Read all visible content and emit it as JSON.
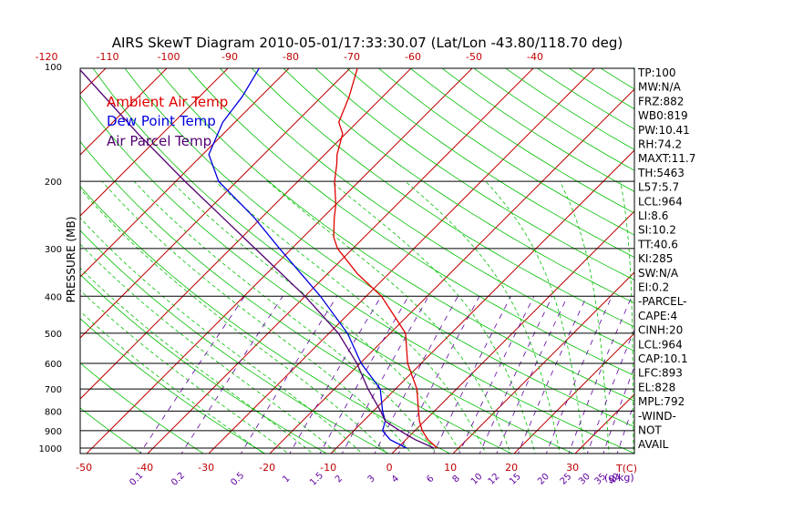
{
  "chart_data": {
    "type": "line",
    "title": "AIRS SkewT Diagram 2010-05-01/17:33:30.07 (Lat/Lon -43.80/118.70 deg)",
    "ylabel": "PRESSURE (MB)",
    "x_unit_label": "T(C)",
    "mixing_unit_label": "(g/kg)",
    "log_scale_y": true,
    "ylim": [
      1000,
      100
    ],
    "pressure_ticks": [
      100,
      200,
      300,
      400,
      500,
      600,
      700,
      800,
      900,
      1000
    ],
    "bottom_temp_ticks": [
      -50,
      -40,
      -30,
      -20,
      -10,
      0,
      10,
      20,
      30
    ],
    "top_temp_ticks": [
      -120,
      -110,
      -100,
      -90,
      -80,
      -70,
      -60,
      -50,
      -40
    ],
    "mixing_ratio_labels": [
      "0.1",
      "0.2",
      "0.5",
      "1",
      "1.5",
      "2",
      "3",
      "4",
      "6",
      "8",
      "10",
      "12",
      "15",
      "20",
      "25",
      "30",
      "35",
      "40"
    ],
    "legend": [
      "Ambient Air Temp",
      "Dew Point Temp",
      "Air Parcel Temp"
    ],
    "colors": {
      "ambient": "#e00000",
      "dewpoint": "#0000e0",
      "parcel": "#500070",
      "isotherm": "#c00000",
      "dry_adiabat": "#00c000",
      "moist_adiabat": "#00c000",
      "mixing_ratio": "#6000a0",
      "isobar": "#000000"
    },
    "series": [
      {
        "name": "Ambient Air Temp",
        "points": [
          [
            1000,
            6.5
          ],
          [
            950,
            3.6
          ],
          [
            900,
            1.2
          ],
          [
            850,
            -0.8
          ],
          [
            800,
            -2.6
          ],
          [
            700,
            -6.5
          ],
          [
            600,
            -12.2
          ],
          [
            500,
            -17.5
          ],
          [
            400,
            -27.5
          ],
          [
            350,
            -35
          ],
          [
            300,
            -42.5
          ],
          [
            280,
            -45
          ],
          [
            250,
            -48
          ],
          [
            230,
            -50
          ],
          [
            200,
            -54
          ],
          [
            180,
            -56.5
          ],
          [
            170,
            -58
          ],
          [
            150,
            -60.5
          ],
          [
            140,
            -63
          ],
          [
            120,
            -65.5
          ],
          [
            100,
            -69
          ]
        ]
      },
      {
        "name": "Dew Point Temp",
        "points": [
          [
            1000,
            1.5
          ],
          [
            950,
            -2.6
          ],
          [
            900,
            -5.3
          ],
          [
            850,
            -6.4
          ],
          [
            800,
            -8.5
          ],
          [
            700,
            -12.5
          ],
          [
            600,
            -19.8
          ],
          [
            500,
            -27
          ],
          [
            400,
            -37.5
          ],
          [
            300,
            -52
          ],
          [
            250,
            -61
          ],
          [
            200,
            -73
          ],
          [
            170,
            -79
          ],
          [
            140,
            -82
          ],
          [
            120,
            -83
          ],
          [
            100,
            -85
          ]
        ]
      },
      {
        "name": "Air Parcel Temp",
        "points": [
          [
            1000,
            6
          ],
          [
            950,
            1.5
          ],
          [
            900,
            -2.5
          ],
          [
            850,
            -6.4
          ],
          [
            800,
            -8.8
          ],
          [
            700,
            -14.5
          ],
          [
            600,
            -20.5
          ],
          [
            500,
            -28.5
          ],
          [
            400,
            -40
          ],
          [
            300,
            -56
          ],
          [
            200,
            -78.5
          ],
          [
            150,
            -94
          ],
          [
            100,
            -115
          ]
        ]
      }
    ]
  },
  "indices": [
    "TP:100",
    "MW:N/A",
    "FRZ:882",
    "WB0:819",
    "PW:10.41",
    "RH:74.2",
    "MAXT:11.7",
    "TH:5463",
    "L57:5.7",
    "LCL:964",
    "LI:8.6",
    "SI:10.2",
    "TT:40.6",
    "KI:285",
    "SW:N/A",
    "EI:0.2",
    "-PARCEL-",
    "CAPE:4",
    "CINH:20",
    "LCL:964",
    "CAP:10.1",
    "LFC:893",
    "EL:828",
    "MPL:792",
    "-WIND-",
    "NOT",
    "AVAIL"
  ]
}
